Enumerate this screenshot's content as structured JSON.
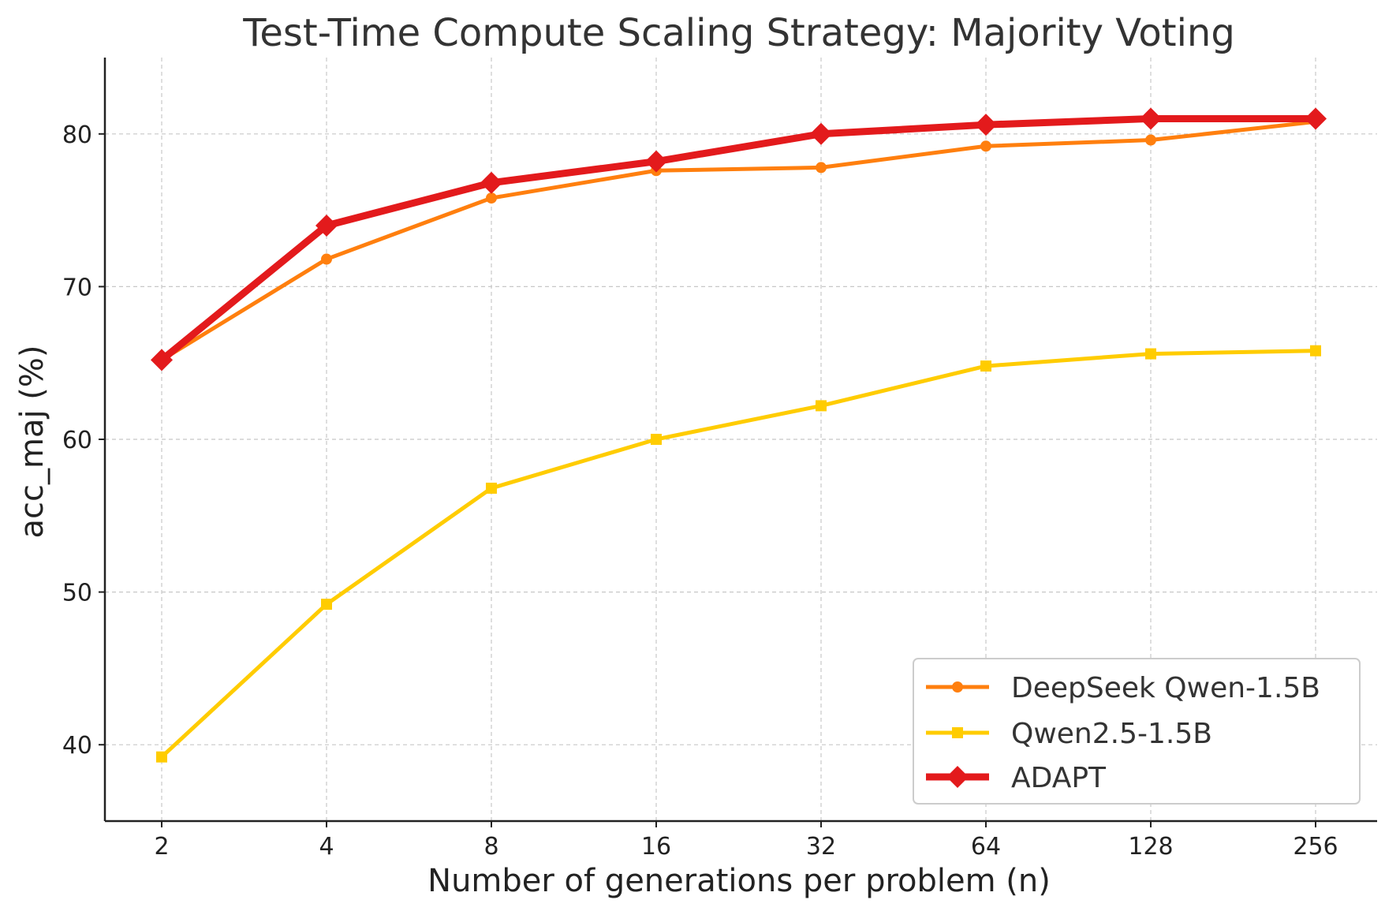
{
  "chart_data": {
    "type": "line",
    "title": "Test-Time Compute Scaling Strategy: Majority Voting",
    "xlabel": "Number of generations per problem (n)",
    "ylabel": "acc_maj (%)",
    "x": [
      2,
      4,
      8,
      16,
      32,
      64,
      128,
      256
    ],
    "x_tick_labels": [
      "2",
      "4",
      "8",
      "16",
      "32",
      "64",
      "128",
      "256"
    ],
    "x_scale": "log2",
    "ylim": [
      35,
      85
    ],
    "y_ticks": [
      40,
      50,
      60,
      70,
      80
    ],
    "grid": true,
    "legend_position": "bottom-right",
    "series": [
      {
        "name": "DeepSeek Qwen-1.5B",
        "color": "#ff7f0e",
        "marker": "circle",
        "values": [
          65.2,
          71.8,
          75.8,
          77.6,
          77.8,
          79.2,
          79.6,
          80.8
        ]
      },
      {
        "name": "Qwen2.5-1.5B",
        "color": "#ffcc00",
        "marker": "square",
        "values": [
          39.2,
          49.2,
          56.8,
          60.0,
          62.2,
          64.8,
          65.6,
          65.8
        ]
      },
      {
        "name": "ADAPT",
        "color": "#e31a1c",
        "marker": "diamond",
        "values": [
          65.2,
          74.0,
          76.8,
          78.2,
          80.0,
          80.6,
          81.0,
          81.0
        ]
      }
    ]
  }
}
